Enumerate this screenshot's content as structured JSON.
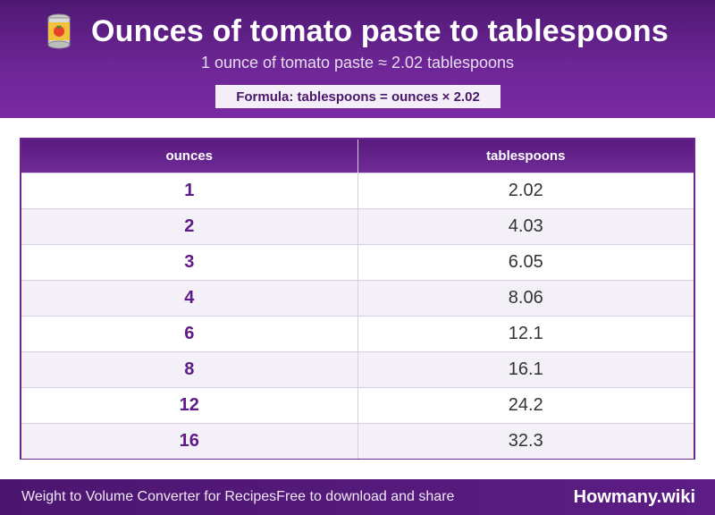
{
  "header": {
    "title": "Ounces of tomato paste to tablespoons",
    "subtitle": "1 ounce of tomato paste ≈ 2.02 tablespoons",
    "formula": "Formula: tablespoons = ounces × 2.02",
    "icon": "tomato-can-icon"
  },
  "table": {
    "headers": [
      "ounces",
      "tablespoons"
    ],
    "rows": [
      [
        "1",
        "2.02"
      ],
      [
        "2",
        "4.03"
      ],
      [
        "3",
        "6.05"
      ],
      [
        "4",
        "8.06"
      ],
      [
        "6",
        "12.1"
      ],
      [
        "8",
        "16.1"
      ],
      [
        "12",
        "24.2"
      ],
      [
        "16",
        "32.3"
      ]
    ]
  },
  "footer": {
    "left": "Weight to Volume Converter for Recipes",
    "middle": "Free to download and share",
    "brand": "Howmany.wiki"
  },
  "colors": {
    "accent": "#6a2591",
    "header_bg": "#5a1b80",
    "row_alt": "#f4f0f8"
  }
}
